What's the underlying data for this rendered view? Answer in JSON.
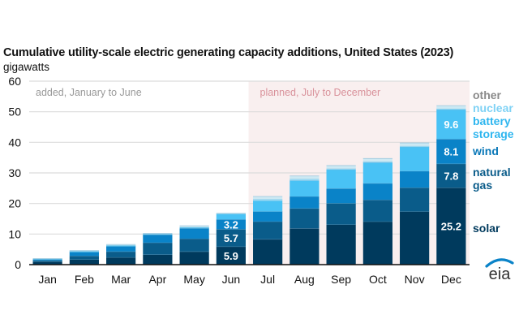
{
  "chart_data": {
    "type": "bar",
    "stacked": true,
    "title": "Cumulative utility-scale electric generating capacity additions, United States (2023)",
    "ylabel": "gigawatts",
    "xlabel": "",
    "ylim": [
      0,
      60
    ],
    "yticks": [
      0,
      10,
      20,
      30,
      40,
      50,
      60
    ],
    "grid": true,
    "categories": [
      "Jan",
      "Feb",
      "Mar",
      "Apr",
      "May",
      "Jun",
      "Jul",
      "Aug",
      "Sep",
      "Oct",
      "Nov",
      "Dec"
    ],
    "series": [
      {
        "name": "solar",
        "color": "#003a5d",
        "values": [
          1.0,
          1.7,
          2.4,
          3.3,
          4.3,
          5.9,
          8.3,
          11.9,
          13.1,
          14.1,
          17.4,
          25.2
        ]
      },
      {
        "name": "natural gas",
        "color": "#0a5c8a",
        "values": [
          0.4,
          1.2,
          1.9,
          3.9,
          4.2,
          5.7,
          5.8,
          6.5,
          7.0,
          7.1,
          7.8,
          7.8
        ]
      },
      {
        "name": "wind",
        "color": "#0a83c8",
        "values": [
          0.3,
          1.2,
          1.7,
          2.6,
          3.4,
          3.2,
          3.3,
          3.9,
          4.8,
          5.4,
          5.4,
          8.1
        ]
      },
      {
        "name": "battery storage",
        "color": "#49c2f5",
        "values": [
          0.2,
          0.3,
          0.3,
          0.2,
          0.3,
          1.8,
          3.5,
          5.2,
          6.2,
          6.8,
          7.9,
          9.6
        ]
      },
      {
        "name": "nuclear",
        "color": "#9adcf7",
        "values": [
          0,
          0,
          0,
          0,
          0,
          0,
          0.5,
          0.5,
          0.3,
          0.3,
          0.3,
          0.3
        ]
      },
      {
        "name": "other",
        "color": "#cde9f3",
        "values": [
          0.1,
          0.2,
          0.3,
          0.2,
          0.5,
          0.2,
          0.9,
          1.0,
          1.0,
          1.0,
          1.0,
          1.0
        ]
      }
    ],
    "data_labels": [
      {
        "category": "Jun",
        "series": "solar",
        "text": "5.9"
      },
      {
        "category": "Jun",
        "series": "natural gas",
        "text": "5.7"
      },
      {
        "category": "Jun",
        "series": "wind",
        "text": "3.2"
      },
      {
        "category": "Dec",
        "series": "solar",
        "text": "25.2"
      },
      {
        "category": "Dec",
        "series": "natural gas",
        "text": "7.8"
      },
      {
        "category": "Dec",
        "series": "wind",
        "text": "8.1"
      },
      {
        "category": "Dec",
        "series": "battery storage",
        "text": "9.6"
      }
    ],
    "legend": {
      "placement": "right",
      "entries": [
        {
          "text": "other",
          "color": "#8a8a8a"
        },
        {
          "text": "nuclear",
          "color": "#7fd2f5"
        },
        {
          "text": "battery",
          "color": "#2eb6ef"
        },
        {
          "text": "storage",
          "color": "#2eb6ef"
        },
        {
          "text": "wind",
          "color": "#0a78b8"
        },
        {
          "text": "natural",
          "color": "#0a5c8a"
        },
        {
          "text": "gas",
          "color": "#0a5c8a"
        },
        {
          "text": "solar",
          "color": "#003a5d"
        }
      ]
    },
    "annotations": [
      {
        "text": "added, January to June",
        "color": "#999999"
      },
      {
        "text": "planned, July to December",
        "color": "#d9929b",
        "shade_from": "Jul",
        "shade_to": "Dec",
        "shade_color": "#f9efef"
      }
    ]
  },
  "logo": {
    "text": "eia",
    "arc_color": "#0a83c8",
    "text_color": "#333333"
  }
}
